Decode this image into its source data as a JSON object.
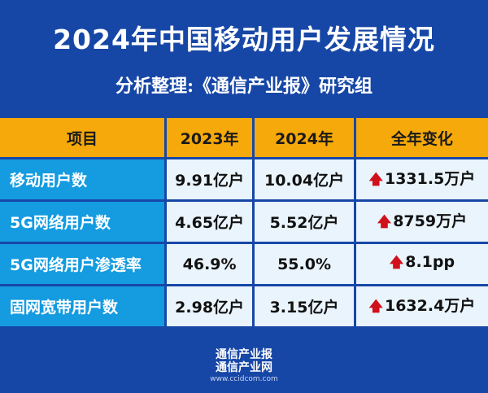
{
  "title": "2024年中国移动用户发展情况",
  "subtitle": "分析整理:《通信产业报》研究组",
  "colors": {
    "background": "#1747a6",
    "header": "#f6a90a",
    "label_cell": "#149be0",
    "data_cell": "#e9f4fc",
    "up_arrow": "#d0101a"
  },
  "table": {
    "headers": [
      "项目",
      "2023年",
      "2024年",
      "全年变化"
    ],
    "rows": [
      {
        "item": "移动用户数",
        "y2023": "9.91亿户",
        "y2024": "10.04亿户",
        "change": "1331.5万户",
        "trend": "up"
      },
      {
        "item": "5G网络用户数",
        "y2023": "4.65亿户",
        "y2024": "5.52亿户",
        "change": "8759万户",
        "trend": "up"
      },
      {
        "item": "5G网络用户渗透率",
        "y2023": "46.9%",
        "y2024": "55.0%",
        "change": "8.1pp",
        "trend": "up"
      },
      {
        "item": "固网宽带用户数",
        "y2023": "2.98亿户",
        "y2024": "3.15亿户",
        "change": "1632.4万户",
        "trend": "up"
      }
    ]
  },
  "footer": {
    "line1": "通信产业报",
    "line2": "通信产业网",
    "url": "www.ccidcom.com"
  }
}
